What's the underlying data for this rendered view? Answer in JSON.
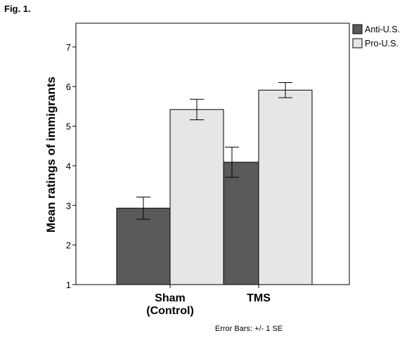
{
  "figure": {
    "label": "Fig. 1."
  },
  "chart_data": {
    "type": "bar",
    "categories": [
      "Sham\n(Control)",
      "TMS"
    ],
    "series": [
      {
        "name": "Anti-U.S.",
        "color": "#5a5a5a",
        "values": [
          2.93,
          4.09
        ],
        "error": [
          0.28,
          0.38
        ]
      },
      {
        "name": "Pro-U.S.",
        "color": "#e6e6e6",
        "values": [
          5.42,
          5.91
        ],
        "error": [
          0.26,
          0.19
        ]
      }
    ],
    "title": "",
    "xlabel": "",
    "ylabel": "Mean ratings of immigrants",
    "ylim": [
      1,
      7.6
    ],
    "yticks": [
      1,
      2,
      3,
      4,
      5,
      6,
      7
    ],
    "grid": false,
    "legend_position": "top-right",
    "note": "Error Bars: +/- 1 SE"
  }
}
